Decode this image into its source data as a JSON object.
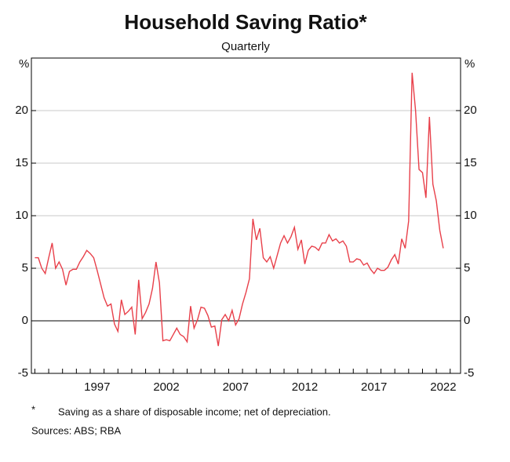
{
  "chart_data": {
    "type": "line",
    "title": "Household Saving Ratio*",
    "subtitle": "Quarterly",
    "y_unit": "%",
    "footnote_marker": "*",
    "footnote": "Saving as a share of disposable income; net of depreciation.",
    "sources": "Sources: ABS; RBA",
    "x": [
      1993,
      1993.25,
      1993.5,
      1993.75,
      1994,
      1994.25,
      1994.5,
      1994.75,
      1995,
      1995.25,
      1995.5,
      1995.75,
      1996,
      1996.25,
      1996.5,
      1996.75,
      1997,
      1997.25,
      1997.5,
      1997.75,
      1998,
      1998.25,
      1998.5,
      1998.75,
      1999,
      1999.25,
      1999.5,
      1999.75,
      2000,
      2000.25,
      2000.5,
      2000.75,
      2001,
      2001.25,
      2001.5,
      2001.75,
      2002,
      2002.25,
      2002.5,
      2002.75,
      2003,
      2003.25,
      2003.5,
      2003.75,
      2004,
      2004.25,
      2004.5,
      2004.75,
      2005,
      2005.25,
      2005.5,
      2005.75,
      2006,
      2006.25,
      2006.5,
      2006.75,
      2007,
      2007.25,
      2007.5,
      2007.75,
      2008,
      2008.25,
      2008.5,
      2008.75,
      2009,
      2009.25,
      2009.5,
      2009.75,
      2010,
      2010.25,
      2010.5,
      2010.75,
      2011,
      2011.25,
      2011.5,
      2011.75,
      2012,
      2012.25,
      2012.5,
      2012.75,
      2013,
      2013.25,
      2013.5,
      2013.75,
      2014,
      2014.25,
      2014.5,
      2014.75,
      2015,
      2015.25,
      2015.5,
      2015.75,
      2016,
      2016.25,
      2016.5,
      2016.75,
      2017,
      2017.25,
      2017.5,
      2017.75,
      2018,
      2018.25,
      2018.5,
      2018.75,
      2019,
      2019.25,
      2019.5,
      2019.75,
      2020,
      2020.25,
      2020.5,
      2020.75,
      2021,
      2021.25,
      2021.5,
      2021.75,
      2022,
      2022.25,
      2022.5
    ],
    "series": [
      {
        "color": "#e8404a",
        "values": [
          6.0,
          6.0,
          5.0,
          4.5,
          6.0,
          7.4,
          5.0,
          5.6,
          4.9,
          3.4,
          4.7,
          4.9,
          4.9,
          5.6,
          6.1,
          6.7,
          6.4,
          6.0,
          4.8,
          3.5,
          2.2,
          1.4,
          1.6,
          -0.3,
          -1.0,
          2.0,
          0.6,
          0.9,
          1.3,
          -1.3,
          3.9,
          0.2,
          0.8,
          1.6,
          3.1,
          5.6,
          3.6,
          -1.9,
          -1.8,
          -1.9,
          -1.3,
          -0.7,
          -1.3,
          -1.5,
          -2.0,
          1.4,
          -0.7,
          0.1,
          1.3,
          1.2,
          0.5,
          -0.6,
          -0.5,
          -2.4,
          0.1,
          0.6,
          0.0,
          1.0,
          -0.4,
          0.2,
          1.6,
          2.7,
          4.0,
          9.7,
          7.7,
          8.8,
          6.0,
          5.6,
          6.1,
          5.0,
          6.2,
          7.4,
          8.1,
          7.4,
          8.0,
          8.9,
          6.8,
          7.7,
          5.4,
          6.7,
          7.1,
          7.0,
          6.7,
          7.4,
          7.4,
          8.2,
          7.6,
          7.8,
          7.4,
          7.6,
          7.1,
          5.6,
          5.6,
          5.9,
          5.8,
          5.3,
          5.5,
          4.9,
          4.5,
          5.0,
          4.8,
          4.8,
          5.1,
          5.8,
          6.3,
          5.4,
          7.8,
          6.9,
          9.5,
          23.6,
          20.0,
          14.4,
          14.1,
          11.7,
          19.4,
          13.0,
          11.4,
          8.6,
          6.9
        ]
      }
    ],
    "xlim": [
      1992.75,
      2023.75
    ],
    "xticks": [
      {
        "value": 1997.5,
        "label": "1997"
      },
      {
        "value": 2002.5,
        "label": "2002"
      },
      {
        "value": 2007.5,
        "label": "2007"
      },
      {
        "value": 2012.5,
        "label": "2012"
      },
      {
        "value": 2017.5,
        "label": "2017"
      },
      {
        "value": 2022.5,
        "label": "2022"
      }
    ],
    "xminorticks": [
      1993,
      1994,
      1995,
      1996,
      1997,
      1998,
      1999,
      2000,
      2001,
      2002,
      2003,
      2004,
      2005,
      2006,
      2007,
      2008,
      2009,
      2010,
      2011,
      2012,
      2013,
      2014,
      2015,
      2016,
      2017,
      2018,
      2019,
      2020,
      2021,
      2022,
      2023
    ],
    "ylim": [
      -5,
      25
    ],
    "yticks": [
      -5,
      0,
      5,
      10,
      15,
      20
    ],
    "grid": true
  }
}
